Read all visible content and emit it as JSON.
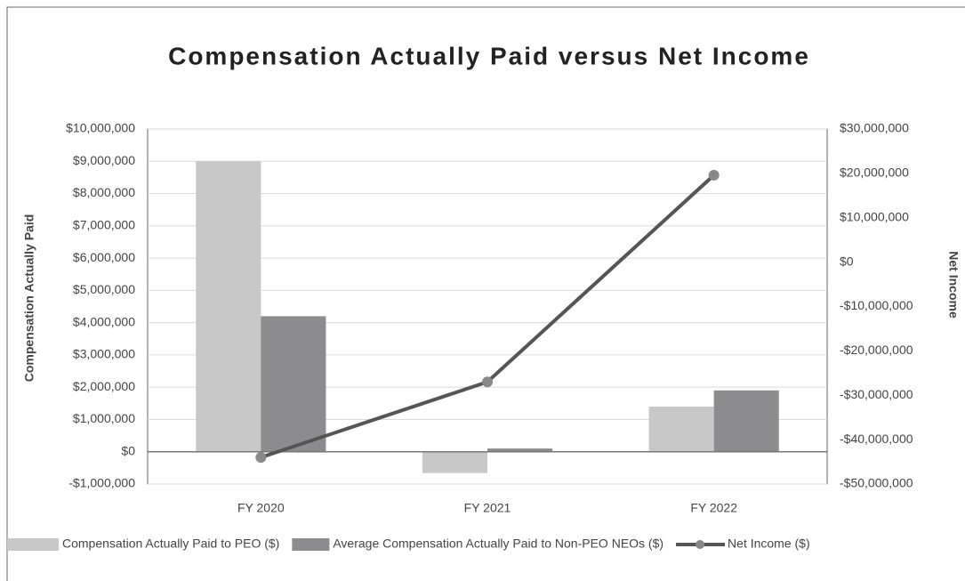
{
  "chart_data": {
    "type": "bar_line",
    "title": "Compensation Actually Paid versus Net Income",
    "ylabel": "Compensation Actually Paid",
    "y2label": "Net Income",
    "categories": [
      "FY 2020",
      "FY 2021",
      "FY 2022"
    ],
    "series": [
      {
        "name": "Compensation Actually Paid to PEO ($)",
        "type": "bar",
        "color": "#c8c8c8",
        "values": [
          9000000,
          -660000,
          1400000
        ]
      },
      {
        "name": "Average Compensation Actually Paid to Non-PEO NEOs ($)",
        "type": "bar",
        "color": "#8c8c8e",
        "values": [
          4200000,
          100000,
          1900000
        ]
      },
      {
        "name": "Net Income ($)",
        "type": "line",
        "axis": "y2",
        "color": "#555555",
        "values": [
          -44000000,
          -27000000,
          19600000
        ]
      }
    ],
    "ylim": [
      -1000000,
      10000000
    ],
    "yticks": [
      {
        "value": -1000000,
        "label": "-$1,000,000"
      },
      {
        "value": 0,
        "label": "$0"
      },
      {
        "value": 1000000,
        "label": "$1,000,000"
      },
      {
        "value": 2000000,
        "label": "$2,000,000"
      },
      {
        "value": 3000000,
        "label": "$3,000,000"
      },
      {
        "value": 4000000,
        "label": "$4,000,000"
      },
      {
        "value": 5000000,
        "label": "$5,000,000"
      },
      {
        "value": 6000000,
        "label": "$6,000,000"
      },
      {
        "value": 7000000,
        "label": "$7,000,000"
      },
      {
        "value": 8000000,
        "label": "$8,000,000"
      },
      {
        "value": 9000000,
        "label": "$9,000,000"
      },
      {
        "value": 10000000,
        "label": "$10,000,000"
      }
    ],
    "y2lim": [
      -50000000,
      30000000
    ],
    "y2ticks": [
      {
        "value": -50000000,
        "label": "-$50,000,000"
      },
      {
        "value": -40000000,
        "label": "-$40,000,000"
      },
      {
        "value": -30000000,
        "label": "-$30,000,000"
      },
      {
        "value": -20000000,
        "label": "-$20,000,000"
      },
      {
        "value": -10000000,
        "label": "-$10,000,000"
      },
      {
        "value": 0,
        "label": "$0"
      },
      {
        "value": 10000000,
        "label": "$10,000,000"
      },
      {
        "value": 20000000,
        "label": "$20,000,000"
      },
      {
        "value": 30000000,
        "label": "$30,000,000"
      }
    ],
    "grid": true,
    "legend": "bottom"
  }
}
